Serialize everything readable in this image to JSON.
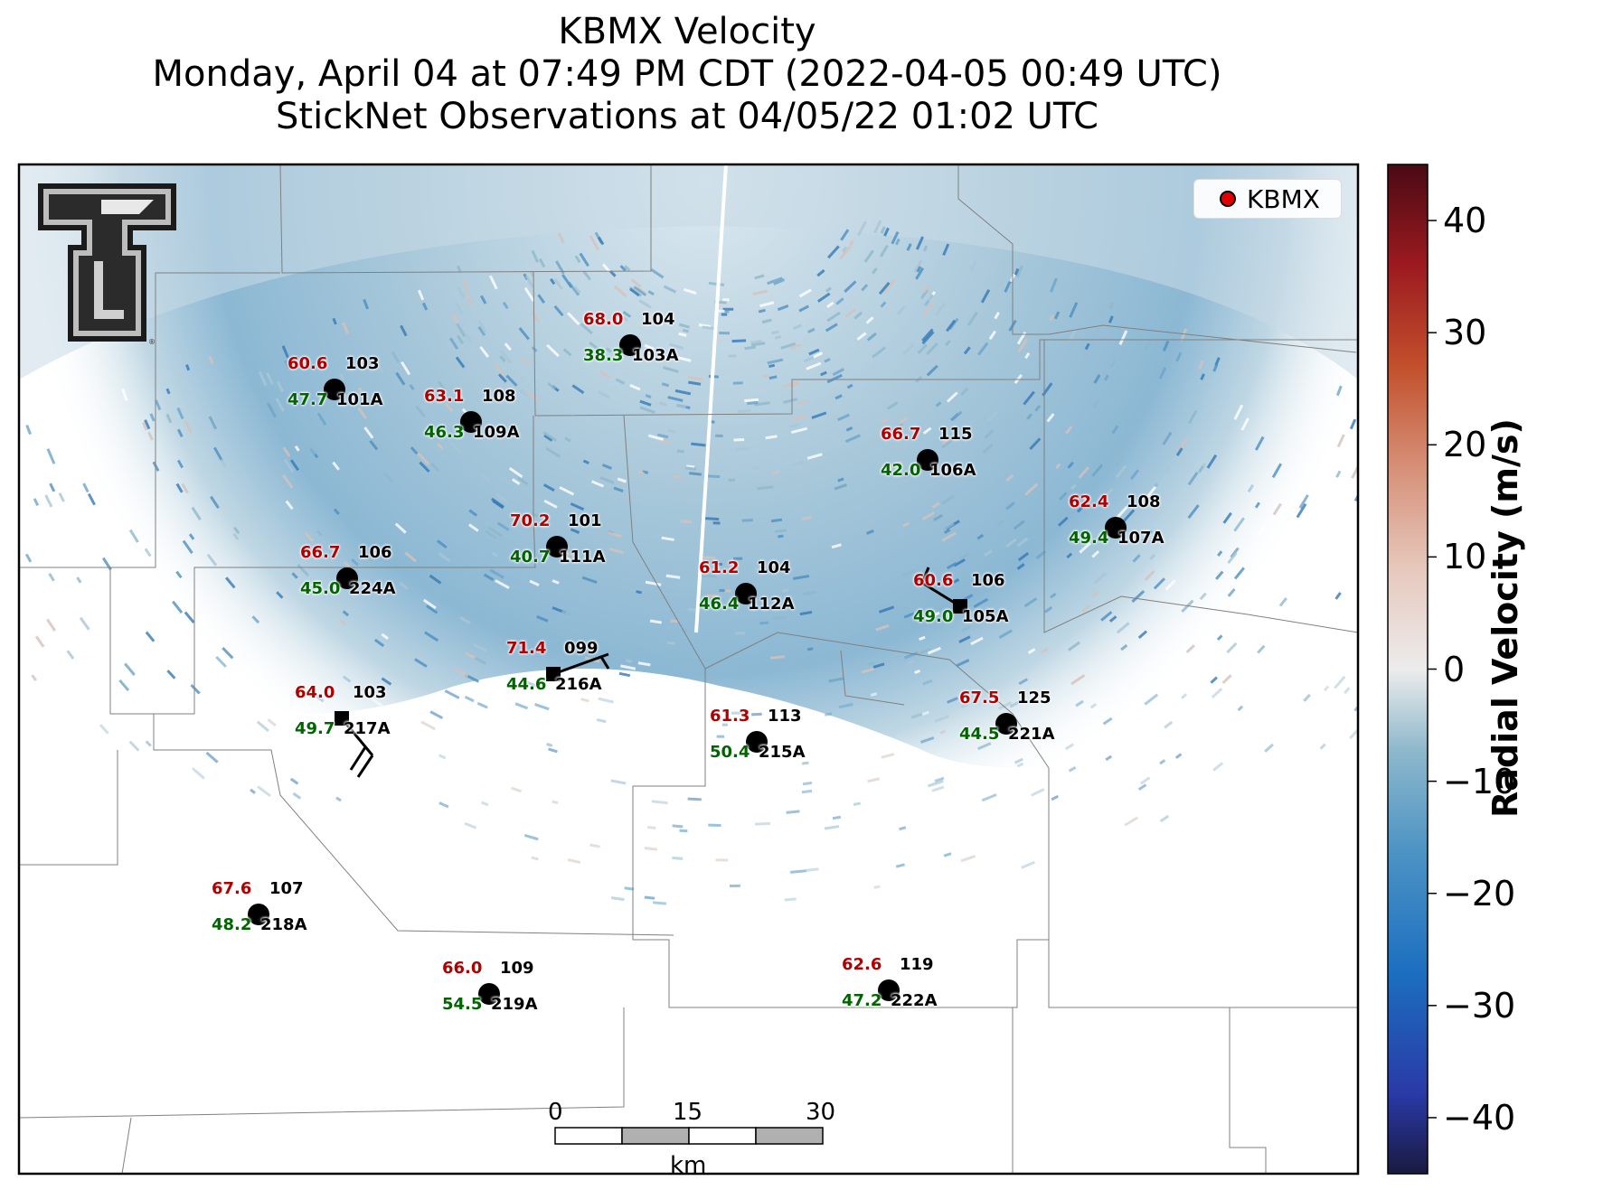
{
  "title": {
    "line1": "KBMX Velocity",
    "line2": "Monday, April 04 at 07:49 PM CDT (2022-04-05 00:49 UTC)",
    "line3": "StickNet Observations at 04/05/22 01:02 UTC"
  },
  "legend": {
    "label": "KBMX",
    "marker_color": "#e00000"
  },
  "colorbar": {
    "label": "Radial Velocity (m/s)",
    "range": [
      -45,
      45
    ],
    "ticks": [
      "40",
      "30",
      "20",
      "10",
      "0",
      "−10",
      "−20",
      "−30",
      "−40"
    ],
    "tick_values": [
      40,
      30,
      20,
      10,
      0,
      -10,
      -20,
      -30,
      -40
    ],
    "colormap": [
      "#1a1a40",
      "#2a3aa8",
      "#1c6fc0",
      "#4d94c4",
      "#8fb8cc",
      "#c8d4da",
      "#ececec",
      "#e6c8bc",
      "#d69078",
      "#c2502c",
      "#9c1a20",
      "#4a0a14"
    ]
  },
  "scale_bar": {
    "labels": [
      "0",
      "15",
      "30"
    ],
    "unit": "km"
  },
  "logo": {
    "name": "Texas Tech Double T"
  },
  "stations": [
    {
      "id": "101A",
      "a": "60.6",
      "b": "47.7",
      "n": "103",
      "marker": "circle"
    },
    {
      "id": "103A",
      "a": "68.0",
      "b": "38.3",
      "n": "104",
      "marker": "circle"
    },
    {
      "id": "109A",
      "a": "63.1",
      "b": "46.3",
      "n": "108",
      "marker": "circle"
    },
    {
      "id": "106A",
      "a": "66.7",
      "b": "42.0",
      "n": "115",
      "marker": "circle"
    },
    {
      "id": "107A",
      "a": "62.4",
      "b": "49.4",
      "n": "108",
      "marker": "circle"
    },
    {
      "id": "111A",
      "a": "70.2",
      "b": "40.7",
      "n": "101",
      "marker": "circle"
    },
    {
      "id": "224A",
      "a": "66.7",
      "b": "45.0",
      "n": "106",
      "marker": "circle"
    },
    {
      "id": "112A",
      "a": "61.2",
      "b": "46.4",
      "n": "104",
      "marker": "circle"
    },
    {
      "id": "105A",
      "a": "60.6",
      "b": "49.0",
      "n": "106",
      "marker": "square"
    },
    {
      "id": "216A",
      "a": "71.4",
      "b": "44.6",
      "n": "099",
      "marker": "square"
    },
    {
      "id": "217A",
      "a": "64.0",
      "b": "49.7",
      "n": "103",
      "marker": "square"
    },
    {
      "id": "221A",
      "a": "67.5",
      "b": "44.5",
      "n": "125",
      "marker": "circle"
    },
    {
      "id": "215A",
      "a": "61.3",
      "b": "50.4",
      "n": "113",
      "marker": "circle"
    },
    {
      "id": "218A",
      "a": "67.6",
      "b": "48.2",
      "n": "107",
      "marker": "circle"
    },
    {
      "id": "219A",
      "a": "66.0",
      "b": "54.5",
      "n": "109",
      "marker": "circle"
    },
    {
      "id": "222A",
      "a": "62.6",
      "b": "47.2",
      "n": "119",
      "marker": "circle"
    }
  ]
}
